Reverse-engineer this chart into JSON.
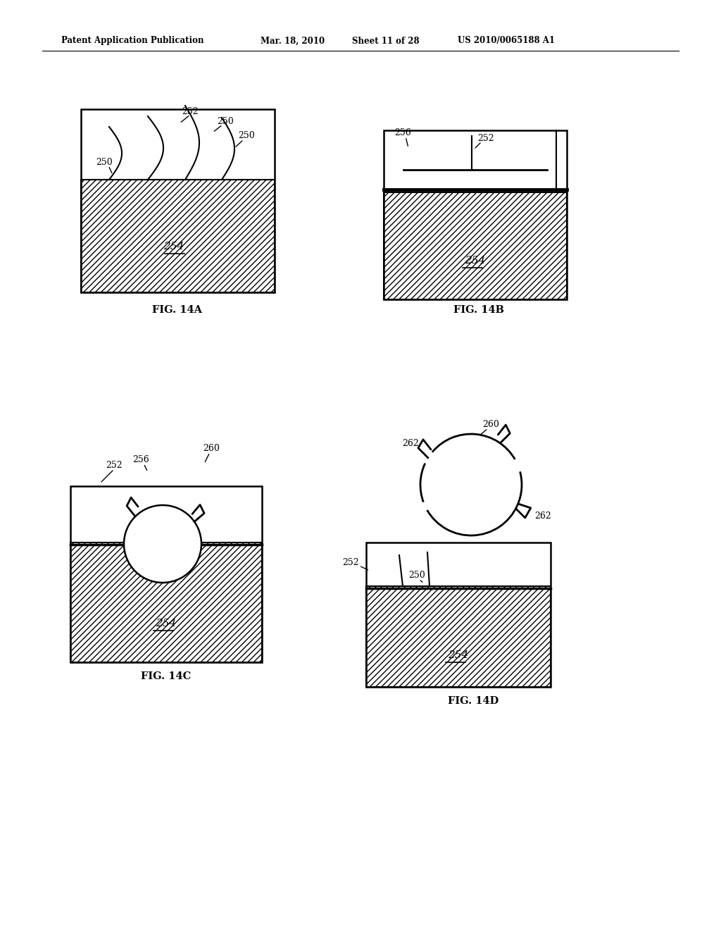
{
  "title_line1": "Patent Application Publication",
  "title_line2": "Mar. 18, 2010",
  "title_line3": "Sheet 11 of 28",
  "title_line4": "US 2010/0065188 A1",
  "bg_color": "#ffffff",
  "line_color": "#000000",
  "fig14a_label": "FIG. 14A",
  "fig14b_label": "FIG. 14B",
  "fig14c_label": "FIG. 14C",
  "fig14d_label": "FIG. 14D",
  "ref_252": "252",
  "ref_250": "250",
  "ref_254": "254",
  "ref_256": "256",
  "ref_260": "260",
  "ref_262": "262"
}
